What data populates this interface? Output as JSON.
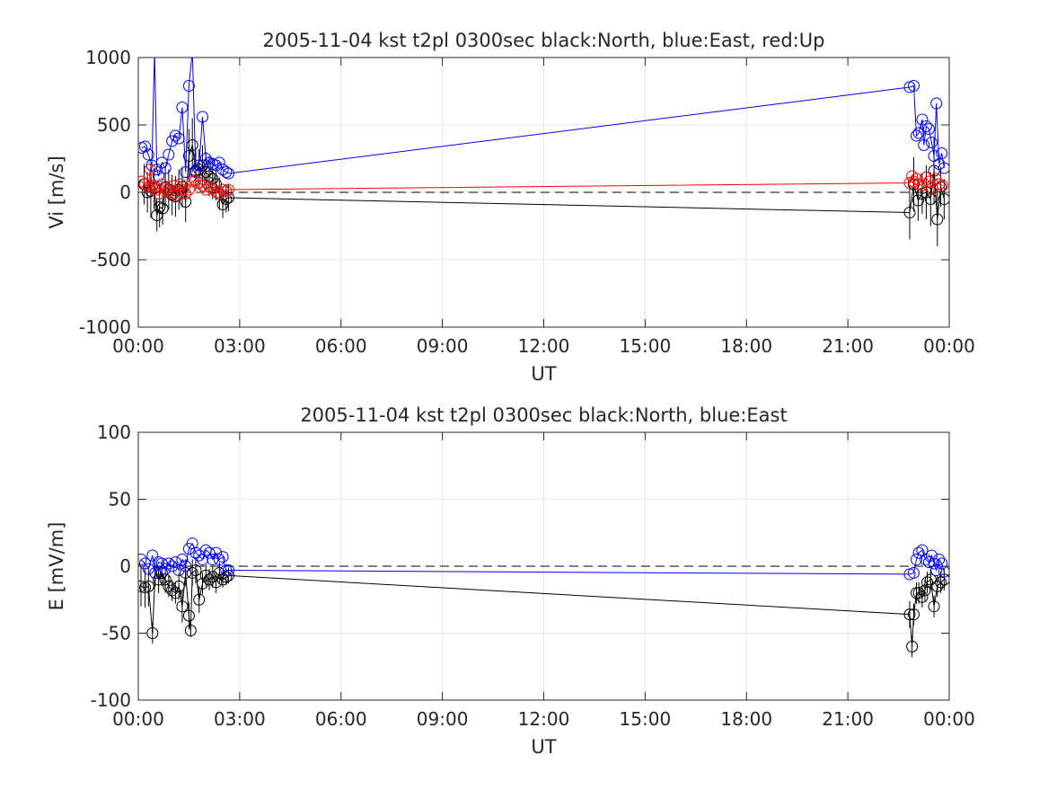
{
  "chart_data": [
    {
      "type": "line",
      "title": "2005-11-04 kst t2pl 0300sec black:North, blue:East, red:Up",
      "xlabel": "UT",
      "ylabel": "Vi [m/s]",
      "xlim": [
        "00:00",
        "24:00"
      ],
      "ylim": [
        -1000,
        1000
      ],
      "xticks": [
        "00:00",
        "03:00",
        "06:00",
        "09:00",
        "12:00",
        "15:00",
        "18:00",
        "21:00",
        "00:00"
      ],
      "yticks": [
        "1000",
        "500",
        "0",
        "-500",
        "-1000"
      ],
      "grid": true,
      "zero_line": true,
      "series": [
        {
          "color": "#000000",
          "x": [
            0.17,
            0.27,
            0.37,
            0.47,
            0.55,
            0.63,
            0.72,
            0.8,
            0.9,
            1.0,
            1.1,
            1.2,
            1.3,
            1.4,
            1.5,
            1.6,
            1.7,
            1.8,
            1.9,
            2.0,
            2.1,
            2.2,
            2.3,
            2.4,
            2.5,
            2.6,
            2.67,
            22.83,
            22.95,
            23.08,
            23.2,
            23.32,
            23.45,
            23.55,
            23.65,
            23.75,
            23.85
          ],
          "y": [
            60,
            0,
            10,
            30,
            -170,
            -110,
            -120,
            40,
            20,
            -20,
            -30,
            20,
            40,
            -70,
            270,
            350,
            160,
            170,
            200,
            150,
            120,
            100,
            60,
            -10,
            -90,
            -50,
            -40,
            -150,
            60,
            -60,
            -10,
            0,
            -50,
            160,
            -200,
            40,
            -50
          ],
          "err": [
            150,
            150,
            200,
            150,
            120,
            150,
            120,
            150,
            150,
            150,
            150,
            150,
            150,
            150,
            200,
            200,
            150,
            150,
            150,
            150,
            150,
            150,
            120,
            120,
            100,
            100,
            100,
            200,
            200,
            150,
            150,
            200,
            200,
            250,
            200,
            150,
            150
          ]
        },
        {
          "color": "#0000ff",
          "x": [
            0.1,
            0.2,
            0.3,
            0.4,
            0.48,
            0.55,
            0.6,
            0.7,
            0.8,
            0.9,
            1.0,
            1.1,
            1.2,
            1.3,
            1.4,
            1.5,
            1.6,
            1.7,
            1.8,
            1.9,
            2.0,
            2.1,
            2.2,
            2.3,
            2.4,
            2.5,
            2.6,
            2.67,
            22.83,
            22.95,
            23.03,
            23.1,
            23.2,
            23.25,
            23.32,
            23.4,
            23.48,
            23.55,
            23.62,
            23.7,
            23.78,
            23.85
          ],
          "y": [
            330,
            340,
            280,
            200,
            1050,
            170,
            120,
            220,
            180,
            280,
            380,
            420,
            400,
            630,
            150,
            790,
            1050,
            150,
            200,
            560,
            250,
            220,
            210,
            200,
            220,
            170,
            150,
            140,
            780,
            790,
            420,
            440,
            540,
            350,
            490,
            470,
            370,
            270,
            660,
            210,
            290,
            180
          ]
        },
        {
          "color": "#ff0000",
          "x": [
            0.1,
            0.2,
            0.3,
            0.35,
            0.42,
            0.5,
            0.55,
            0.62,
            0.7,
            0.8,
            0.9,
            1.0,
            1.05,
            1.15,
            1.25,
            1.3,
            1.4,
            1.5,
            1.6,
            1.7,
            1.8,
            1.9,
            2.0,
            2.1,
            2.2,
            2.3,
            2.4,
            2.5,
            2.6,
            2.67,
            22.83,
            22.9,
            22.95,
            23.03,
            23.1,
            23.2,
            23.3,
            23.4,
            23.5,
            23.6,
            23.7,
            23.8
          ],
          "y": [
            80,
            60,
            40,
            170,
            50,
            40,
            20,
            -10,
            60,
            30,
            0,
            -10,
            50,
            -20,
            60,
            20,
            -10,
            20,
            80,
            90,
            70,
            50,
            20,
            40,
            30,
            0,
            -10,
            20,
            10,
            20,
            70,
            120,
            80,
            100,
            60,
            50,
            110,
            80,
            30,
            100,
            60,
            50
          ]
        }
      ]
    },
    {
      "type": "line",
      "title": "2005-11-04 kst t2pl 0300sec black:North, blue:East",
      "xlabel": "UT",
      "ylabel": "E [mV/m]",
      "xlim": [
        "00:00",
        "24:00"
      ],
      "ylim": [
        -100,
        100
      ],
      "xticks": [
        "00:00",
        "03:00",
        "06:00",
        "09:00",
        "12:00",
        "15:00",
        "18:00",
        "21:00",
        "00:00"
      ],
      "yticks": [
        "100",
        "50",
        "0",
        "-50",
        "-100"
      ],
      "grid": true,
      "zero_line": true,
      "series": [
        {
          "color": "#000000",
          "x": [
            0.08,
            0.2,
            0.3,
            0.42,
            0.5,
            0.6,
            0.7,
            0.8,
            0.9,
            1.0,
            1.1,
            1.2,
            1.3,
            1.4,
            1.5,
            1.55,
            1.6,
            1.7,
            1.8,
            1.9,
            2.0,
            2.1,
            2.2,
            2.3,
            2.4,
            2.5,
            2.6,
            2.67,
            22.83,
            22.9,
            22.95,
            23.03,
            23.1,
            23.2,
            23.28,
            23.35,
            23.45,
            23.55,
            23.65,
            23.75,
            23.85
          ],
          "y": [
            -15,
            -16,
            -15,
            -50,
            -5,
            -10,
            -5,
            -10,
            -15,
            -18,
            -20,
            -15,
            -30,
            -5,
            -37,
            -48,
            -5,
            -3,
            -25,
            -13,
            -7,
            -10,
            -8,
            -12,
            -5,
            -10,
            -8,
            -7,
            -36,
            -60,
            -36,
            -20,
            -20,
            -23,
            -18,
            -12,
            -10,
            -30,
            -15,
            -12,
            -10
          ],
          "err": [
            15,
            15,
            15,
            8,
            10,
            10,
            10,
            10,
            8,
            8,
            8,
            10,
            12,
            10,
            10,
            5,
            10,
            10,
            10,
            8,
            8,
            8,
            8,
            8,
            8,
            6,
            6,
            6,
            10,
            8,
            8,
            8,
            8,
            8,
            8,
            8,
            8,
            8,
            8,
            8,
            8
          ]
        },
        {
          "color": "#0000ff",
          "x": [
            0.08,
            0.2,
            0.3,
            0.42,
            0.5,
            0.6,
            0.7,
            0.8,
            0.9,
            1.0,
            1.1,
            1.2,
            1.3,
            1.4,
            1.5,
            1.6,
            1.7,
            1.8,
            1.9,
            2.0,
            2.1,
            2.2,
            2.3,
            2.4,
            2.5,
            2.6,
            2.67,
            22.83,
            22.95,
            23.03,
            23.1,
            23.2,
            23.3,
            23.4,
            23.48,
            23.55,
            23.62,
            23.7,
            23.78,
            23.85
          ],
          "y": [
            5,
            2,
            -2,
            8,
            -5,
            3,
            2,
            -2,
            2,
            0,
            3,
            -3,
            5,
            0,
            13,
            17,
            10,
            8,
            5,
            12,
            10,
            5,
            10,
            5,
            7,
            -3,
            -3,
            -6,
            -5,
            5,
            10,
            12,
            5,
            3,
            8,
            2,
            -3,
            5,
            2,
            -4
          ]
        }
      ]
    }
  ]
}
